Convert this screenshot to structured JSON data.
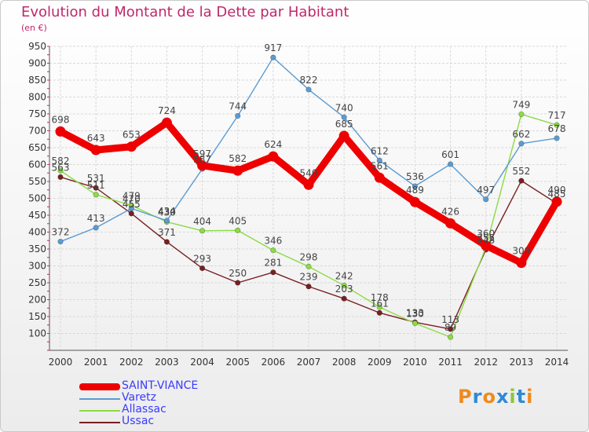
{
  "title": "Evolution du Montant de la Dette par Habitant",
  "unit_label": "(en €)",
  "logo": {
    "text": "Proxiti",
    "letter_colors": [
      "#f08a1e",
      "#2e8ad8",
      "#f08a1e",
      "#2e8ad8",
      "#8cc63f",
      "#2e8ad8",
      "#f08a1e"
    ]
  },
  "chart_data": {
    "type": "line",
    "title": "Evolution du Montant de la Dette par Habitant",
    "ylabel": "(en €)",
    "xlabel": "",
    "ylim": [
      50,
      950
    ],
    "yticks": [
      100,
      150,
      200,
      250,
      300,
      350,
      400,
      450,
      500,
      550,
      600,
      650,
      700,
      750,
      800,
      850,
      900,
      950
    ],
    "grid": true,
    "legend_position": "bottom-left",
    "x": [
      "2000",
      "2001",
      "2002",
      "2003",
      "2004",
      "2005",
      "2006",
      "2007",
      "2008",
      "2009",
      "2010",
      "2011",
      "2012",
      "2013",
      "2014"
    ],
    "series": [
      {
        "name": "Ussac",
        "color": "#7a1f22",
        "values": [
          563,
          531,
          455,
          371,
          293,
          250,
          281,
          239,
          203,
          161,
          133,
          113,
          348,
          552,
          485
        ]
      },
      {
        "name": "Allassac",
        "color": "#8cdb45",
        "values": [
          582,
          511,
          479,
          430,
          404,
          405,
          346,
          298,
          242,
          178,
          130,
          89,
          355,
          749,
          717
        ]
      },
      {
        "name": "Varetz",
        "color": "#5b9bd1",
        "values": [
          372,
          413,
          470,
          434,
          587,
          744,
          917,
          822,
          740,
          612,
          536,
          601,
          497,
          662,
          678
        ]
      },
      {
        "name": "SAINT-VIANCE",
        "color": "#ee0000",
        "values": [
          698,
          643,
          653,
          724,
          597,
          582,
          624,
          540,
          685,
          561,
          489,
          426,
          360,
          309,
          490
        ]
      }
    ]
  },
  "legend": [
    {
      "label": "SAINT-VIANCE",
      "color": "#ee0000",
      "text_color": "#3a3aff",
      "thick": true
    },
    {
      "label": "Varetz",
      "color": "#5b9bd1",
      "text_color": "#3a3aff",
      "thick": false
    },
    {
      "label": "Allassac",
      "color": "#8cdb45",
      "text_color": "#3a3aff",
      "thick": false
    },
    {
      "label": "Ussac",
      "color": "#7a1f22",
      "text_color": "#3a3aff",
      "thick": false
    }
  ]
}
